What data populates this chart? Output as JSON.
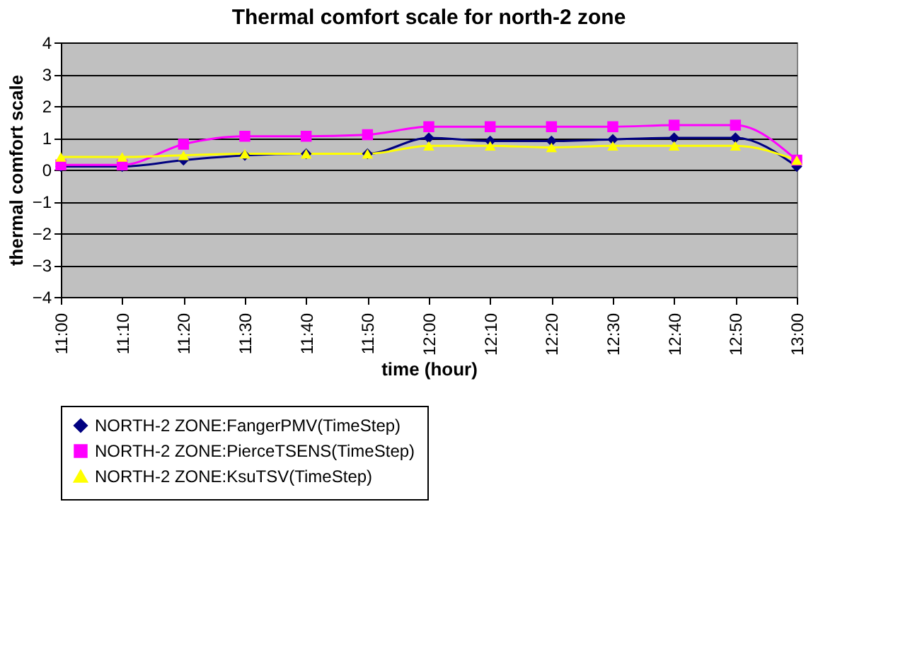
{
  "chart_data": {
    "type": "line",
    "title": "Thermal comfort scale for north-2 zone",
    "xlabel": "time (hour)",
    "ylabel": "thermal comfort scale",
    "categories": [
      "11:00",
      "11:10",
      "11:20",
      "11:30",
      "11:40",
      "11:50",
      "12:00",
      "12:10",
      "12:20",
      "12:30",
      "12:40",
      "12:50",
      "13:00"
    ],
    "series": [
      {
        "name": "NORTH-2 ZONE:FangerPMV(TimeStep)",
        "color": "#000080",
        "marker": "diamond",
        "values": [
          0.1,
          0.1,
          0.3,
          0.45,
          0.5,
          0.5,
          1.0,
          0.9,
          0.9,
          0.95,
          1.0,
          1.0,
          0.1
        ]
      },
      {
        "name": "NORTH-2 ZONE:PierceTSENS(TimeStep)",
        "color": "#ff00ff",
        "marker": "square",
        "values": [
          0.15,
          0.15,
          0.8,
          1.05,
          1.05,
          1.1,
          1.35,
          1.35,
          1.35,
          1.35,
          1.4,
          1.4,
          0.3
        ]
      },
      {
        "name": "NORTH-2 ZONE:KsuTSV(TimeStep)",
        "color": "#ffff00",
        "marker": "triangle",
        "values": [
          0.4,
          0.4,
          0.45,
          0.5,
          0.5,
          0.5,
          0.75,
          0.75,
          0.7,
          0.75,
          0.75,
          0.75,
          0.3
        ]
      }
    ],
    "ylim": [
      -4,
      4
    ],
    "yticks": [
      -4,
      -3,
      -2,
      -1,
      0,
      1,
      2,
      3,
      4
    ],
    "grid": "y",
    "legend": "bottom",
    "line_style": "solid"
  }
}
